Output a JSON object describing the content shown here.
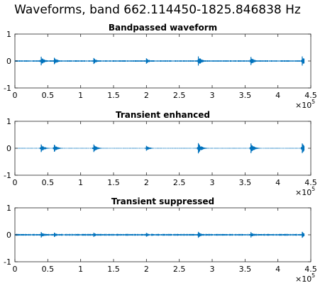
{
  "figure": {
    "suptitle": "Waveforms, band 662.114450-1825.846838 Hz"
  },
  "style": {
    "line_color": "#0072BD",
    "axis_color": "#262626"
  },
  "chart_data": [
    {
      "type": "line",
      "title": "Bandpassed waveform",
      "xlim": [
        0,
        450000
      ],
      "ylim": [
        -1,
        1
      ],
      "xticks": [
        0,
        50000,
        100000,
        150000,
        200000,
        250000,
        300000,
        350000,
        400000,
        450000
      ],
      "xtick_labels": [
        "0",
        "0.5",
        "1",
        "1.5",
        "2",
        "2.5",
        "3",
        "3.5",
        "4",
        "4.5"
      ],
      "x_multiplier_base": "×10",
      "x_multiplier_exp": "5",
      "yticks": [
        -1,
        0,
        1
      ],
      "ytick_labels": [
        "-1",
        "0",
        "1"
      ],
      "grid": false,
      "series": [
        {
          "transients": [
            {
              "x": 40000,
              "amp": 0.16
            },
            {
              "x": 60000,
              "amp": 0.12
            },
            {
              "x": 120000,
              "amp": 0.11
            },
            {
              "x": 200000,
              "amp": 0.1
            },
            {
              "x": 279000,
              "amp": 0.17
            },
            {
              "x": 359000,
              "amp": 0.15
            },
            {
              "x": 437000,
              "amp": 0.17
            }
          ],
          "noise_amp": 0.02,
          "x_end": 440000
        }
      ]
    },
    {
      "type": "line",
      "title": "Transient enhanced",
      "xlim": [
        0,
        450000
      ],
      "ylim": [
        -1,
        1
      ],
      "xticks": [
        0,
        50000,
        100000,
        150000,
        200000,
        250000,
        300000,
        350000,
        400000,
        450000
      ],
      "xtick_labels": [
        "0",
        "0.5",
        "1",
        "1.5",
        "2",
        "2.5",
        "3",
        "3.5",
        "4",
        "4.5"
      ],
      "x_multiplier_base": "×10",
      "x_multiplier_exp": "5",
      "yticks": [
        -1,
        0,
        1
      ],
      "ytick_labels": [
        "-1",
        "0",
        "1"
      ],
      "grid": false,
      "series": [
        {
          "transients": [
            {
              "x": 40000,
              "amp": 0.14
            },
            {
              "x": 60000,
              "amp": 0.13
            },
            {
              "x": 120000,
              "amp": 0.14
            },
            {
              "x": 200000,
              "amp": 0.09
            },
            {
              "x": 279000,
              "amp": 0.19
            },
            {
              "x": 359000,
              "amp": 0.18
            },
            {
              "x": 437000,
              "amp": 0.18
            }
          ],
          "noise_amp": 0.008,
          "x_end": 440000
        }
      ]
    },
    {
      "type": "line",
      "title": "Transient suppressed",
      "xlim": [
        0,
        450000
      ],
      "ylim": [
        -1,
        1
      ],
      "xticks": [
        0,
        50000,
        100000,
        150000,
        200000,
        250000,
        300000,
        350000,
        400000,
        450000
      ],
      "xtick_labels": [
        "0",
        "0.5",
        "1",
        "1.5",
        "2",
        "2.5",
        "3",
        "3.5",
        "4",
        "4.5"
      ],
      "x_multiplier_base": "×10",
      "x_multiplier_exp": "5",
      "yticks": [
        -1,
        0,
        1
      ],
      "ytick_labels": [
        "-1",
        "0",
        "1"
      ],
      "grid": false,
      "series": [
        {
          "transients": [
            {
              "x": 40000,
              "amp": 0.1
            },
            {
              "x": 60000,
              "amp": 0.08
            },
            {
              "x": 120000,
              "amp": 0.08
            },
            {
              "x": 200000,
              "amp": 0.07
            },
            {
              "x": 279000,
              "amp": 0.11
            },
            {
              "x": 359000,
              "amp": 0.1
            },
            {
              "x": 437000,
              "amp": 0.11
            }
          ],
          "noise_amp": 0.025,
          "x_end": 440000
        }
      ]
    }
  ]
}
